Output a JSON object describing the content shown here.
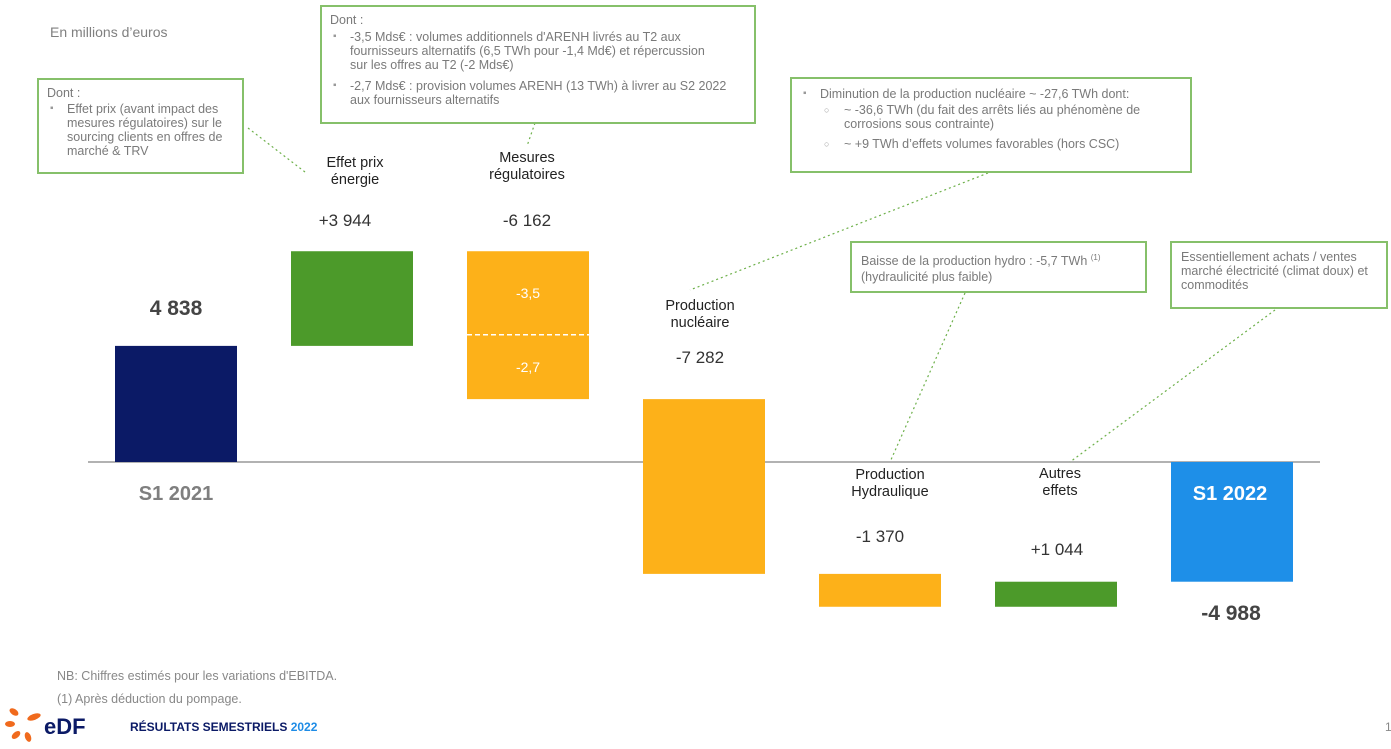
{
  "unit_label": "En millions d’euros",
  "chart_data": {
    "type": "waterfall",
    "unit": "En millions d’euros",
    "categories": [
      "S1 2021",
      "Effet prix énergie",
      "Mesures régulatoires",
      "Production nucléaire",
      "Production Hydraulique",
      "Autres effets",
      "S1 2022"
    ],
    "category_lines": [
      [
        "S1 2021"
      ],
      [
        "Effet prix",
        "énergie"
      ],
      [
        "Mesures",
        "régulatoires"
      ],
      [
        "Production",
        "nucléaire"
      ],
      [
        "Production",
        "Hydraulique"
      ],
      [
        "Autres",
        "effets"
      ],
      [
        "S1 2022"
      ]
    ],
    "values": [
      4838,
      3944,
      -6162,
      -7282,
      -1370,
      1044,
      -4988
    ],
    "kinds": [
      "total",
      "delta",
      "delta",
      "delta",
      "delta",
      "delta",
      "total"
    ],
    "value_labels": [
      "4 838",
      "+3 944",
      "-6 162",
      "-7 282",
      "-1 370",
      "+1 044",
      "-4 988"
    ],
    "colors": [
      "#0b1a66",
      "#4c9a2a",
      "#fdb119",
      "#fdb119",
      "#fdb119",
      "#4c9a2a",
      "#1e8fe8"
    ],
    "regulatory_split": {
      "labels": [
        "-3,5",
        "-2,7"
      ],
      "values": [
        -3.5,
        -2.7
      ],
      "unit": "Mds€"
    },
    "grid": false,
    "legend": "none"
  },
  "callouts": {
    "price": {
      "title": "Dont :",
      "items": [
        "Effet prix (avant impact des mesures régulatoires) sur le sourcing clients en offres de marché & TRV"
      ]
    },
    "regulatory": {
      "title": "Dont :",
      "items": [
        "-3,5 Mds€ : volumes additionnels d'ARENH livrés au T2 aux fournisseurs alternatifs (6,5 TWh pour -1,4 Md€) et répercussion sur les offres au T2 (-2 Mds€)",
        "-2,7 Mds€ : provision volumes ARENH (13 TWh) à livrer au S2 2022 aux fournisseurs alternatifs"
      ]
    },
    "nuclear": {
      "main": "Diminution de la production nucléaire ~ -27,6 TWh dont:",
      "subs": [
        "~  -36,6 TWh (du fait des arrêts liés au phénomène de corrosions sous contrainte)",
        "~ +9 TWh d’effets volumes favorables (hors CSC)"
      ]
    },
    "hydro": {
      "text": "Baisse de la production hydro : -5,7 TWh",
      "sup": "(1)",
      "text2": "(hydraulicité plus faible)"
    },
    "other": {
      "text": "Essentiellement achats / ventes marché électricité (climat doux) et commodités"
    }
  },
  "footnotes": {
    "nb": "NB: Chiffres estimés pour les variations d'EBITDA.",
    "note1": "(1)    Après déduction du pompage."
  },
  "footer": {
    "logo_text": "eDF",
    "title": "RÉSULTATS SEMESTRIELS",
    "year": "2022",
    "page": "1"
  },
  "colors": {
    "callout_border": "#86c06a",
    "brand_navy": "#0b1a66",
    "brand_blue": "#1e8fe8",
    "logo_orange": "#f06a1d"
  }
}
